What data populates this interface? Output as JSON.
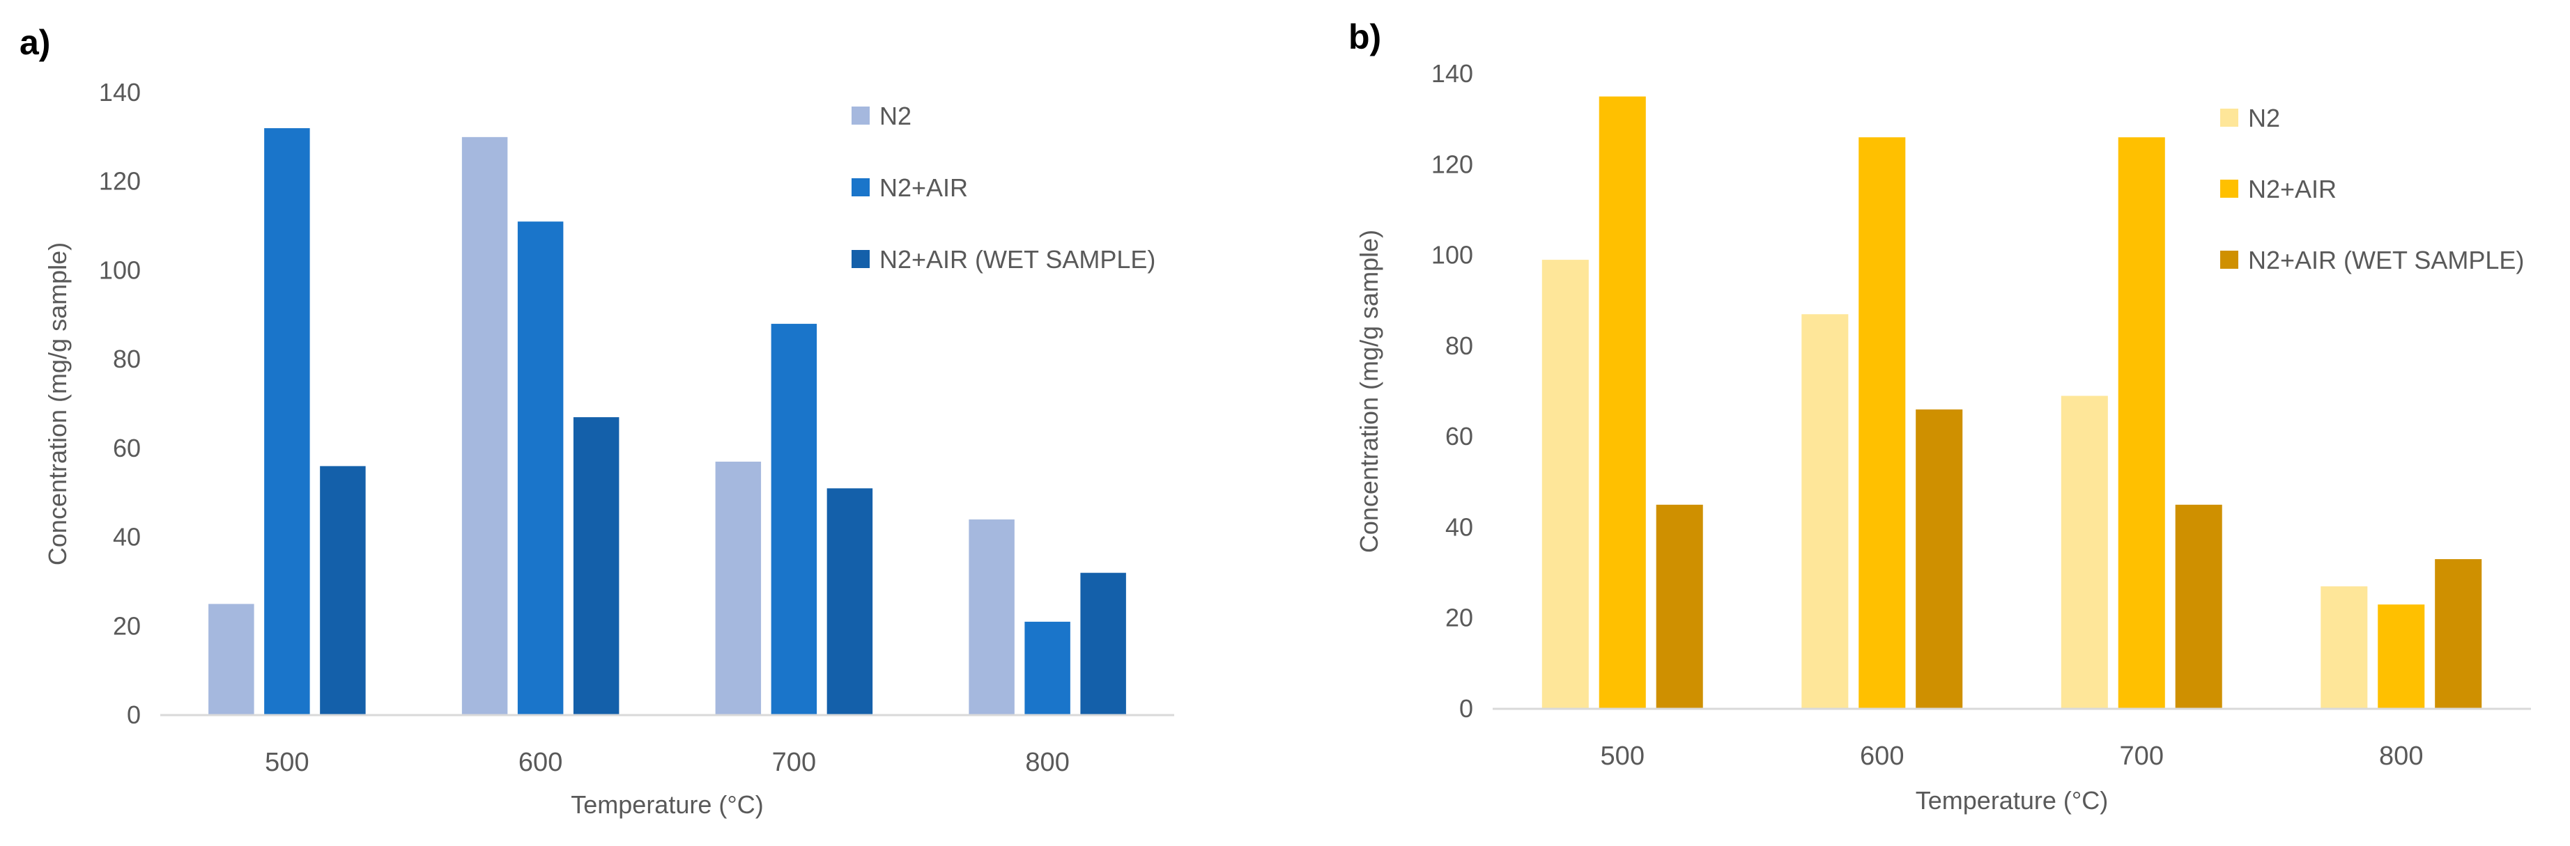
{
  "chart_data": [
    {
      "type": "bar",
      "panel_label": "a)",
      "categories": [
        "500",
        "600",
        "700",
        "800"
      ],
      "series": [
        {
          "name": "N2",
          "values": [
            25,
            130,
            57,
            44
          ]
        },
        {
          "name": "N2+AIR",
          "values": [
            132,
            111,
            88,
            21
          ]
        },
        {
          "name": "N2+AIR (WET SAMPLE)",
          "values": [
            56,
            67,
            51,
            32
          ]
        }
      ],
      "colors": [
        "#a5b8de",
        "#1a75ca",
        "#1460aa"
      ],
      "xlabel": "Temperature (°C)",
      "ylabel": "Concentration (mg/g sample)",
      "ylim": [
        0,
        140
      ],
      "yticks": [
        "0",
        "20",
        "40",
        "60",
        "80",
        "100",
        "120",
        "140"
      ],
      "grid": false,
      "legend": "top-right"
    },
    {
      "type": "bar",
      "panel_label": "b)",
      "categories": [
        "500",
        "600",
        "700",
        "800"
      ],
      "series": [
        {
          "name": "N2",
          "values": [
            99,
            87,
            69,
            27
          ]
        },
        {
          "name": "N2+AIR",
          "values": [
            135,
            126,
            126,
            23
          ]
        },
        {
          "name": "N2+AIR (WET SAMPLE)",
          "values": [
            45,
            66,
            45,
            33
          ]
        }
      ],
      "colors": [
        "#fee699",
        "#ffc000",
        "#cf9000"
      ],
      "xlabel": "Temperature (°C)",
      "ylabel": "Concentration (mg/g sample)",
      "ylim": [
        0,
        140
      ],
      "yticks": [
        "0",
        "20",
        "40",
        "60",
        "80",
        "100",
        "120",
        "140"
      ],
      "grid": false,
      "legend": "top-right"
    }
  ]
}
